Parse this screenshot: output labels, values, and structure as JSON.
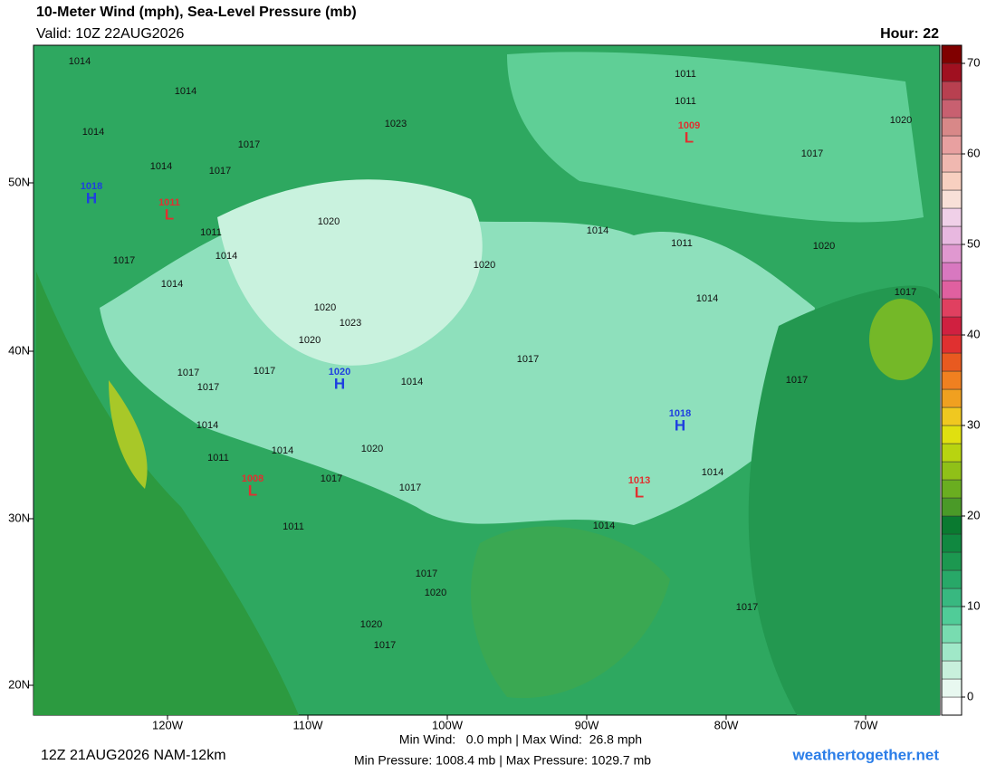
{
  "header": {
    "title": "10-Meter Wind (mph), Sea-Level Pressure (mb)",
    "valid": "Valid: 10Z 22AUG2026",
    "hour": "Hour: 22"
  },
  "map": {
    "lat_labels": [
      "50N",
      "40N",
      "30N",
      "20N"
    ],
    "lon_labels": [
      "120W",
      "110W",
      "100W",
      "90W",
      "80W",
      "70W"
    ],
    "pressure_labels": [
      "1014",
      "1014",
      "1014",
      "1017",
      "1014",
      "1017",
      "1023",
      "1011",
      "1011",
      "1020",
      "1017",
      "1020",
      "1011",
      "1014",
      "1017",
      "1014",
      "1020",
      "1014",
      "1011",
      "1020",
      "1014",
      "1017",
      "1020",
      "1023",
      "1020",
      "1017",
      "1017",
      "1017",
      "1014",
      "1017",
      "1017",
      "1014",
      "1014",
      "1011",
      "1020",
      "1017",
      "1017",
      "1014",
      "1014",
      "1011",
      "1017",
      "1020",
      "1020",
      "1017",
      "1017"
    ],
    "centers": [
      {
        "type": "H",
        "value": "1018"
      },
      {
        "type": "L",
        "value": "1011"
      },
      {
        "type": "L",
        "value": "1009"
      },
      {
        "type": "H",
        "value": "1020"
      },
      {
        "type": "H",
        "value": "1018"
      },
      {
        "type": "L",
        "value": "1008"
      },
      {
        "type": "L",
        "value": "1013"
      }
    ]
  },
  "colorbar": {
    "lim": [
      -2,
      72
    ],
    "ticks": [
      0,
      10,
      20,
      30,
      40,
      50,
      60,
      70
    ],
    "colors": [
      "#ffffff",
      "#e8f8f0",
      "#c8f0dc",
      "#a0e8c8",
      "#78dcb0",
      "#50cc98",
      "#38b880",
      "#28a868",
      "#1c9850",
      "#108840",
      "#0a7a30",
      "#4a9a28",
      "#6aae20",
      "#90c018",
      "#b8d410",
      "#e0e010",
      "#f0c820",
      "#f0a020",
      "#f08020",
      "#e85a20",
      "#e03030",
      "#d02040",
      "#e04060",
      "#e060a0",
      "#d878c0",
      "#e098d0",
      "#e8b8e0",
      "#f0d0e8",
      "#f8e0d8",
      "#f8d0c0",
      "#f0b8b0",
      "#e8a0a0",
      "#d88888",
      "#c86070",
      "#b84050",
      "#a01020",
      "#800000"
    ]
  },
  "footer": {
    "run": "12Z 21AUG2026 NAM-12km",
    "wind": "Min Wind:   0.0 mph | Max Wind:  26.8 mph",
    "pressure": "Min Pressure: 1008.4 mb | Max Pressure: 1029.7 mb",
    "site": "weathertogether.net"
  }
}
